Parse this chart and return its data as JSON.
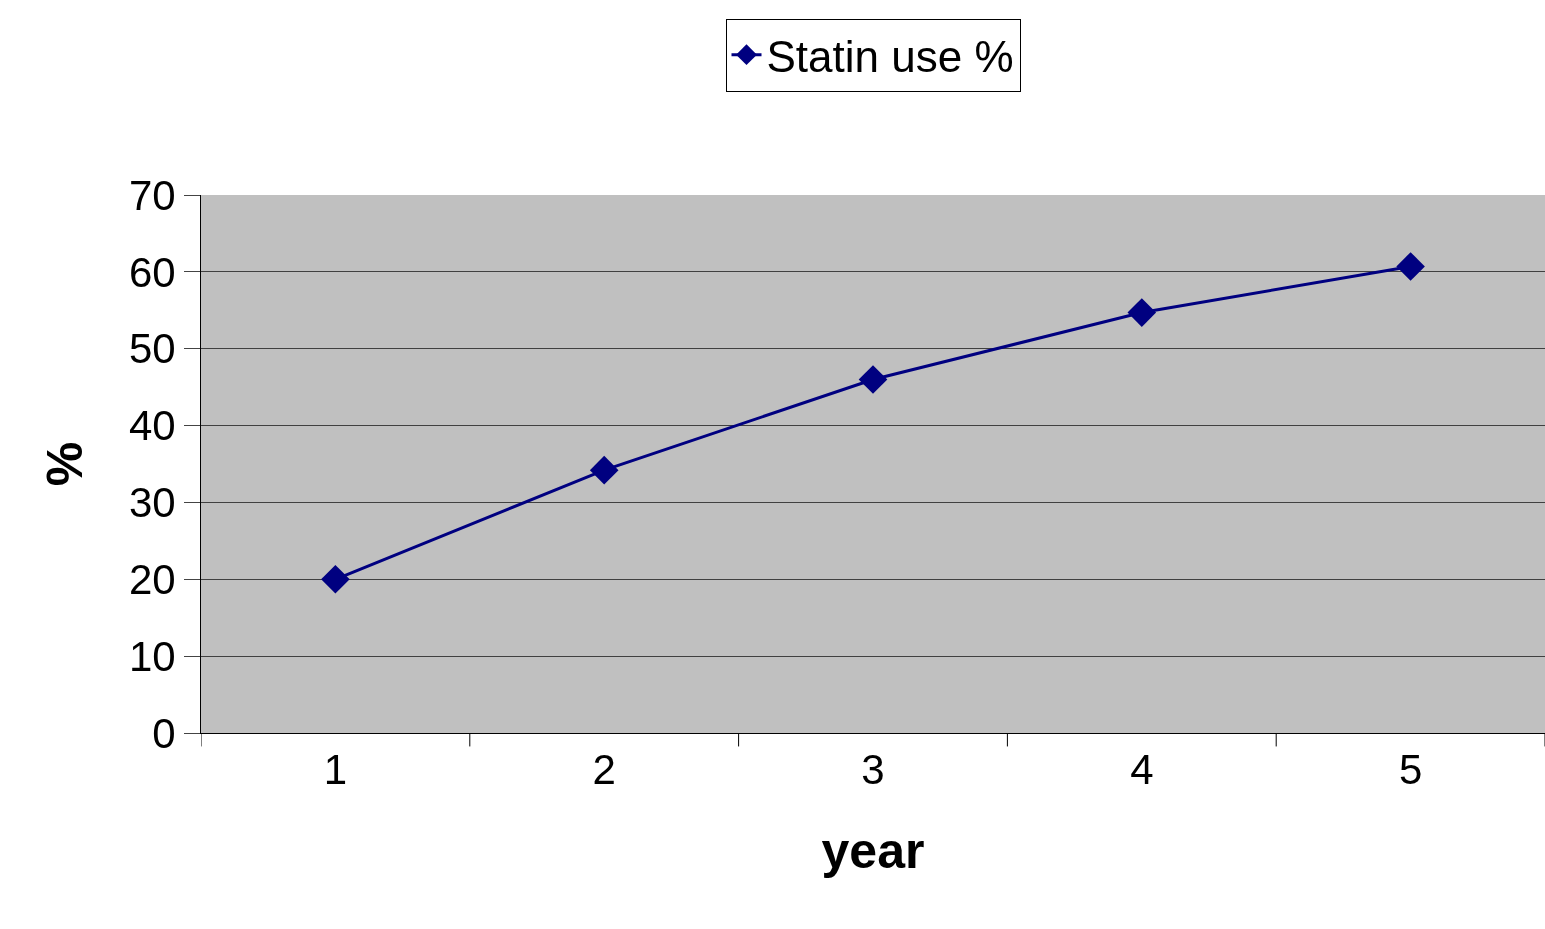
{
  "chart_data": {
    "type": "line",
    "xlabel": "year",
    "ylabel": "%",
    "categories": [
      "1",
      "2",
      "3",
      "4",
      "5"
    ],
    "series": [
      {
        "name": "Statin use %",
        "color": "#000080",
        "values": [
          20.0,
          34.2,
          46.0,
          54.7,
          60.7
        ]
      }
    ],
    "ylim": [
      0,
      70
    ],
    "yticks": [
      0,
      10,
      20,
      30,
      40,
      50,
      60,
      70
    ],
    "grid": "y",
    "legend": "top",
    "marker": "diamond",
    "line_style": "solid"
  }
}
